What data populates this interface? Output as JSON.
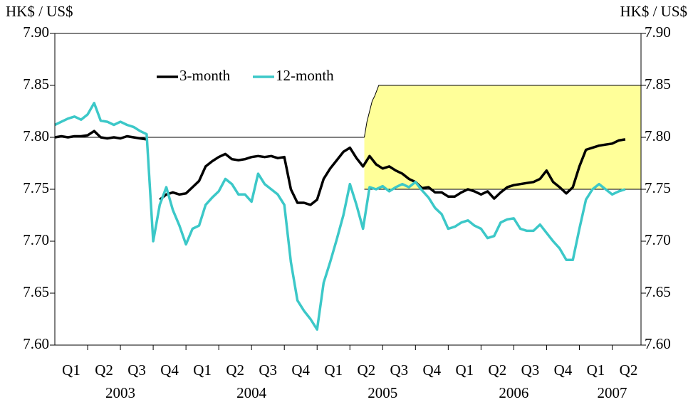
{
  "chart_data": {
    "type": "line",
    "ylabel_left": "HK$ / US$",
    "ylabel_right": "HK$ / US$",
    "ylim": [
      7.6,
      7.9
    ],
    "yticks": [
      {
        "value": 7.6,
        "label": "7.60"
      },
      {
        "value": 7.65,
        "label": "7.65"
      },
      {
        "value": 7.7,
        "label": "7.70"
      },
      {
        "value": 7.75,
        "label": "7.75"
      },
      {
        "value": 7.8,
        "label": "7.80"
      },
      {
        "value": 7.85,
        "label": "7.85"
      },
      {
        "value": 7.9,
        "label": "7.90"
      }
    ],
    "xlim": [
      2003,
      2007.47
    ],
    "xticks": [
      2003.25,
      2003.5,
      2003.75,
      2004,
      2004.25,
      2004.5,
      2004.75,
      2005,
      2005.25,
      2005.5,
      2005.75,
      2006,
      2006.25,
      2006.5,
      2006.75,
      2007,
      2007.25
    ],
    "quarter_labels": [
      {
        "value": 2003.125,
        "label": "Q1"
      },
      {
        "value": 2003.375,
        "label": "Q2"
      },
      {
        "value": 2003.625,
        "label": "Q3"
      },
      {
        "value": 2003.875,
        "label": "Q4"
      },
      {
        "value": 2004.125,
        "label": "Q1"
      },
      {
        "value": 2004.375,
        "label": "Q2"
      },
      {
        "value": 2004.625,
        "label": "Q3"
      },
      {
        "value": 2004.875,
        "label": "Q4"
      },
      {
        "value": 2005.125,
        "label": "Q1"
      },
      {
        "value": 2005.375,
        "label": "Q2"
      },
      {
        "value": 2005.625,
        "label": "Q3"
      },
      {
        "value": 2005.875,
        "label": "Q4"
      },
      {
        "value": 2006.125,
        "label": "Q1"
      },
      {
        "value": 2006.375,
        "label": "Q2"
      },
      {
        "value": 2006.625,
        "label": "Q3"
      },
      {
        "value": 2006.875,
        "label": "Q4"
      },
      {
        "value": 2007.125,
        "label": "Q1"
      },
      {
        "value": 2007.375,
        "label": "Q2"
      }
    ],
    "year_labels": [
      {
        "value": 2003.5,
        "label": "2003"
      },
      {
        "value": 2004.5,
        "label": "2004"
      },
      {
        "value": 2005.5,
        "label": "2005"
      },
      {
        "value": 2006.5,
        "label": "2006"
      },
      {
        "value": 2007.25,
        "label": "2007"
      }
    ],
    "reference_line": {
      "x": [
        2003,
        2005.36
      ],
      "value": 7.8
    },
    "band": {
      "color": "#ffff99",
      "x": [
        2005.36,
        2005.38,
        2005.4,
        2005.42,
        2005.44,
        2005.47,
        2007.47
      ],
      "upper": [
        7.8,
        7.815,
        7.825,
        7.835,
        7.84,
        7.85,
        7.85
      ],
      "lower": 7.75
    },
    "x": [
      2003,
      2003.05,
      2003.1,
      2003.15,
      2003.2,
      2003.25,
      2003.3,
      2003.35,
      2003.4,
      2003.45,
      2003.5,
      2003.55,
      2003.6,
      2003.65,
      2003.7,
      2003.75,
      2003.8,
      2003.85,
      2003.9,
      2003.95,
      2004,
      2004.05,
      2004.1,
      2004.15,
      2004.2,
      2004.25,
      2004.3,
      2004.35,
      2004.4,
      2004.45,
      2004.5,
      2004.55,
      2004.6,
      2004.65,
      2004.7,
      2004.75,
      2004.8,
      2004.85,
      2004.9,
      2004.95,
      2005,
      2005.05,
      2005.1,
      2005.15,
      2005.2,
      2005.25,
      2005.3,
      2005.35,
      2005.4,
      2005.45,
      2005.5,
      2005.55,
      2005.6,
      2005.65,
      2005.7,
      2005.75,
      2005.8,
      2005.85,
      2005.9,
      2005.95,
      2006,
      2006.05,
      2006.1,
      2006.15,
      2006.2,
      2006.25,
      2006.3,
      2006.35,
      2006.4,
      2006.45,
      2006.5,
      2006.55,
      2006.6,
      2006.65,
      2006.7,
      2006.75,
      2006.8,
      2006.85,
      2006.9,
      2006.95,
      2007,
      2007.05,
      2007.1,
      2007.15,
      2007.2,
      2007.25,
      2007.3,
      2007.35
    ],
    "series": [
      {
        "name": "3-month",
        "color": "#000000",
        "values": [
          7.8,
          7.801,
          7.8,
          7.801,
          7.801,
          7.802,
          7.806,
          7.8,
          7.799,
          7.8,
          7.799,
          7.801,
          7.8,
          7.799,
          7.798,
          null,
          7.74,
          7.745,
          7.747,
          7.745,
          7.746,
          7.752,
          7.758,
          7.772,
          7.777,
          7.781,
          7.784,
          7.779,
          7.778,
          7.779,
          7.781,
          7.782,
          7.781,
          7.782,
          7.78,
          7.781,
          7.75,
          7.737,
          7.737,
          7.735,
          7.74,
          7.76,
          7.77,
          7.778,
          7.786,
          7.79,
          7.78,
          7.772,
          7.782,
          7.774,
          7.77,
          7.772,
          7.768,
          7.765,
          7.76,
          7.757,
          7.751,
          7.752,
          7.747,
          7.747,
          7.743,
          7.743,
          7.747,
          7.75,
          7.748,
          7.745,
          7.748,
          7.741,
          7.747,
          7.752,
          7.754,
          7.755,
          7.756,
          7.757,
          7.76,
          7.768,
          7.757,
          7.752,
          7.746,
          7.752,
          7.772,
          7.788,
          7.79,
          7.792,
          7.793,
          7.794,
          7.797,
          7.798
        ]
      },
      {
        "name": "12-month",
        "color": "#3cc8c8",
        "values": [
          7.812,
          7.815,
          7.818,
          7.82,
          7.817,
          7.822,
          7.833,
          7.816,
          7.815,
          7.812,
          7.815,
          7.812,
          7.81,
          7.806,
          7.803,
          7.7,
          7.735,
          7.752,
          7.73,
          7.715,
          7.697,
          7.712,
          7.715,
          7.735,
          7.742,
          7.748,
          7.76,
          7.755,
          7.745,
          7.745,
          7.738,
          7.765,
          7.755,
          7.75,
          7.745,
          7.735,
          7.68,
          7.643,
          7.633,
          7.625,
          7.615,
          7.66,
          7.68,
          7.702,
          7.725,
          7.755,
          7.735,
          7.712,
          7.752,
          7.75,
          7.753,
          7.748,
          7.752,
          7.755,
          7.752,
          7.757,
          7.749,
          7.742,
          7.732,
          7.726,
          7.712,
          7.714,
          7.718,
          7.72,
          7.715,
          7.712,
          7.703,
          7.705,
          7.718,
          7.721,
          7.722,
          7.712,
          7.71,
          7.71,
          7.716,
          7.708,
          7.7,
          7.693,
          7.682,
          7.682,
          7.712,
          7.74,
          7.75,
          7.755,
          7.75,
          7.745,
          7.748,
          7.75
        ]
      }
    ]
  }
}
